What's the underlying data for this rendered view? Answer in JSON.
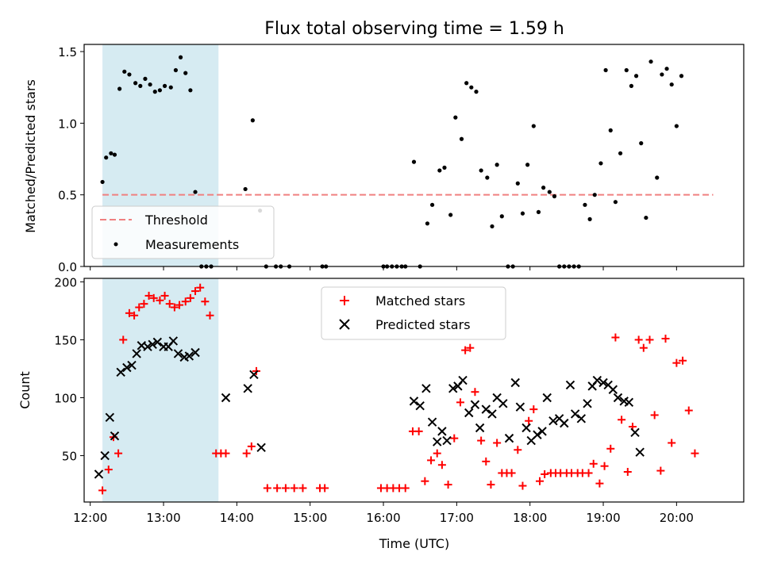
{
  "chart_data": [
    {
      "type": "scatter",
      "title": "Flux total observing time = 1.59 h",
      "ylabel": "Matched/Predicted stars",
      "xlabel": "",
      "xlim": [
        "11:55",
        "20:55"
      ],
      "ylim": [
        0,
        1.55
      ],
      "x_ticks": [
        "12:00",
        "13:00",
        "14:00",
        "15:00",
        "16:00",
        "17:00",
        "18:00",
        "19:00",
        "20:00"
      ],
      "y_ticks": [
        "0.0",
        "0.5",
        "1.0",
        "1.5"
      ],
      "x_tick_labels_shown": false,
      "shaded_span": {
        "start": "12:10",
        "end": "13:45",
        "color": "#add8e6"
      },
      "legend": {
        "placement": "lower-left",
        "entries": [
          "Threshold",
          "Measurements"
        ]
      },
      "threshold": {
        "name": "Threshold",
        "value": 0.5,
        "x_range": [
          "12:10",
          "20:30"
        ],
        "color": "#f08080",
        "style": "dashed"
      },
      "series": [
        {
          "name": "Measurements",
          "color": "#000000",
          "marker": "dot",
          "points": [
            [
              "12:10",
              0.59
            ],
            [
              "12:13",
              0.76
            ],
            [
              "12:17",
              0.79
            ],
            [
              "12:20",
              0.78
            ],
            [
              "12:24",
              1.24
            ],
            [
              "12:28",
              1.36
            ],
            [
              "12:32",
              1.34
            ],
            [
              "12:37",
              1.28
            ],
            [
              "12:41",
              1.26
            ],
            [
              "12:45",
              1.31
            ],
            [
              "12:49",
              1.27
            ],
            [
              "12:53",
              1.22
            ],
            [
              "12:57",
              1.23
            ],
            [
              "13:01",
              1.26
            ],
            [
              "13:06",
              1.25
            ],
            [
              "13:10",
              1.37
            ],
            [
              "13:14",
              1.46
            ],
            [
              "13:18",
              1.35
            ],
            [
              "13:22",
              1.23
            ],
            [
              "13:26",
              0.52
            ],
            [
              "13:31",
              0.0
            ],
            [
              "13:35",
              0.0
            ],
            [
              "13:39",
              0.0
            ],
            [
              "14:07",
              0.54
            ],
            [
              "14:13",
              1.02
            ],
            [
              "14:19",
              0.39
            ],
            [
              "14:24",
              0.0
            ],
            [
              "14:32",
              0.0
            ],
            [
              "14:36",
              0.0
            ],
            [
              "14:43",
              0.0
            ],
            [
              "15:10",
              0.0
            ],
            [
              "15:13",
              0.0
            ],
            [
              "16:00",
              0.0
            ],
            [
              "16:03",
              0.0
            ],
            [
              "16:07",
              0.0
            ],
            [
              "16:11",
              0.0
            ],
            [
              "16:15",
              0.0
            ],
            [
              "16:18",
              0.0
            ],
            [
              "16:25",
              0.73
            ],
            [
              "16:30",
              0.0
            ],
            [
              "16:36",
              0.3
            ],
            [
              "16:40",
              0.43
            ],
            [
              "16:46",
              0.67
            ],
            [
              "16:50",
              0.69
            ],
            [
              "16:55",
              0.36
            ],
            [
              "16:59",
              1.04
            ],
            [
              "17:04",
              0.89
            ],
            [
              "17:08",
              1.28
            ],
            [
              "17:12",
              1.25
            ],
            [
              "17:16",
              1.22
            ],
            [
              "17:20",
              0.67
            ],
            [
              "17:25",
              0.62
            ],
            [
              "17:29",
              0.28
            ],
            [
              "17:33",
              0.71
            ],
            [
              "17:37",
              0.35
            ],
            [
              "17:42",
              0.0
            ],
            [
              "17:46",
              0.0
            ],
            [
              "17:50",
              0.58
            ],
            [
              "17:54",
              0.37
            ],
            [
              "17:58",
              0.71
            ],
            [
              "18:03",
              0.98
            ],
            [
              "18:07",
              0.38
            ],
            [
              "18:11",
              0.55
            ],
            [
              "18:16",
              0.52
            ],
            [
              "18:20",
              0.49
            ],
            [
              "18:24",
              0.0
            ],
            [
              "18:28",
              0.0
            ],
            [
              "18:32",
              0.0
            ],
            [
              "18:36",
              0.0
            ],
            [
              "18:40",
              0.0
            ],
            [
              "18:45",
              0.43
            ],
            [
              "18:49",
              0.33
            ],
            [
              "18:53",
              0.5
            ],
            [
              "18:58",
              0.72
            ],
            [
              "19:02",
              1.37
            ],
            [
              "19:06",
              0.95
            ],
            [
              "19:10",
              0.45
            ],
            [
              "19:14",
              0.79
            ],
            [
              "19:19",
              1.37
            ],
            [
              "19:23",
              1.26
            ],
            [
              "19:27",
              1.33
            ],
            [
              "19:31",
              0.86
            ],
            [
              "19:35",
              0.34
            ],
            [
              "19:39",
              1.43
            ],
            [
              "19:44",
              0.62
            ],
            [
              "19:48",
              1.34
            ],
            [
              "19:52",
              1.38
            ],
            [
              "19:56",
              1.27
            ],
            [
              "20:00",
              0.98
            ],
            [
              "20:04",
              1.33
            ]
          ]
        }
      ]
    },
    {
      "type": "scatter",
      "title": "",
      "xlabel": "Time (UTC)",
      "ylabel": "Count",
      "xlim": [
        "11:55",
        "20:55"
      ],
      "ylim": [
        10,
        203
      ],
      "x_ticks": [
        "12:00",
        "13:00",
        "14:00",
        "15:00",
        "16:00",
        "17:00",
        "18:00",
        "19:00",
        "20:00"
      ],
      "y_ticks": [
        "50",
        "100",
        "150",
        "200"
      ],
      "shaded_span": {
        "start": "12:10",
        "end": "13:45",
        "color": "#add8e6"
      },
      "legend": {
        "placement": "top-center",
        "entries": [
          "Matched stars",
          "Predicted stars"
        ]
      },
      "series": [
        {
          "name": "Matched stars",
          "color": "#ff0000",
          "marker": "plus",
          "points": [
            [
              "12:10",
              20
            ],
            [
              "12:15",
              38
            ],
            [
              "12:19",
              66
            ],
            [
              "12:23",
              52
            ],
            [
              "12:27",
              150
            ],
            [
              "12:32",
              173
            ],
            [
              "12:36",
              171
            ],
            [
              "12:40",
              178
            ],
            [
              "12:44",
              181
            ],
            [
              "12:48",
              188
            ],
            [
              "12:52",
              186
            ],
            [
              "12:57",
              184
            ],
            [
              "13:01",
              188
            ],
            [
              "13:05",
              181
            ],
            [
              "13:09",
              178
            ],
            [
              "13:13",
              180
            ],
            [
              "13:18",
              183
            ],
            [
              "13:22",
              186
            ],
            [
              "13:26",
              192
            ],
            [
              "13:30",
              195
            ],
            [
              "13:34",
              183
            ],
            [
              "13:38",
              171
            ],
            [
              "13:43",
              52
            ],
            [
              "13:47",
              52
            ],
            [
              "13:51",
              52
            ],
            [
              "14:08",
              52
            ],
            [
              "14:12",
              58
            ],
            [
              "14:16",
              123
            ],
            [
              "14:25",
              22
            ],
            [
              "14:33",
              22
            ],
            [
              "14:40",
              22
            ],
            [
              "14:47",
              22
            ],
            [
              "14:54",
              22
            ],
            [
              "15:08",
              22
            ],
            [
              "15:12",
              22
            ],
            [
              "15:58",
              22
            ],
            [
              "16:03",
              22
            ],
            [
              "16:08",
              22
            ],
            [
              "16:13",
              22
            ],
            [
              "16:18",
              22
            ],
            [
              "16:24",
              71
            ],
            [
              "16:29",
              71
            ],
            [
              "16:34",
              28
            ],
            [
              "16:39",
              46
            ],
            [
              "16:44",
              52
            ],
            [
              "16:48",
              42
            ],
            [
              "16:53",
              25
            ],
            [
              "16:58",
              65
            ],
            [
              "17:03",
              96
            ],
            [
              "17:07",
              141
            ],
            [
              "17:11",
              143
            ],
            [
              "17:15",
              105
            ],
            [
              "17:20",
              63
            ],
            [
              "17:24",
              45
            ],
            [
              "17:28",
              25
            ],
            [
              "17:33",
              61
            ],
            [
              "17:37",
              35
            ],
            [
              "17:41",
              35
            ],
            [
              "17:45",
              35
            ],
            [
              "17:50",
              55
            ],
            [
              "17:54",
              24
            ],
            [
              "17:59",
              80
            ],
            [
              "18:03",
              90
            ],
            [
              "18:08",
              28
            ],
            [
              "18:12",
              34
            ],
            [
              "18:17",
              35
            ],
            [
              "18:21",
              35
            ],
            [
              "18:25",
              35
            ],
            [
              "18:30",
              35
            ],
            [
              "18:34",
              35
            ],
            [
              "18:39",
              35
            ],
            [
              "18:43",
              35
            ],
            [
              "18:48",
              35
            ],
            [
              "18:52",
              43
            ],
            [
              "18:57",
              26
            ],
            [
              "19:01",
              41
            ],
            [
              "19:06",
              56
            ],
            [
              "19:10",
              152
            ],
            [
              "19:15",
              81
            ],
            [
              "19:20",
              36
            ],
            [
              "19:24",
              75
            ],
            [
              "19:29",
              150
            ],
            [
              "19:33",
              143
            ],
            [
              "19:38",
              150
            ],
            [
              "19:42",
              85
            ],
            [
              "19:47",
              37
            ],
            [
              "19:51",
              151
            ],
            [
              "19:56",
              61
            ],
            [
              "20:00",
              130
            ],
            [
              "20:05",
              132
            ],
            [
              "20:10",
              89
            ],
            [
              "20:15",
              52
            ]
          ]
        },
        {
          "name": "Predicted stars",
          "color": "#000000",
          "marker": "x",
          "points": [
            [
              "12:07",
              34
            ],
            [
              "12:12",
              50
            ],
            [
              "12:16",
              83
            ],
            [
              "12:20",
              67
            ],
            [
              "12:25",
              122
            ],
            [
              "12:30",
              126
            ],
            [
              "12:34",
              128
            ],
            [
              "12:38",
              138
            ],
            [
              "12:42",
              145
            ],
            [
              "12:47",
              144
            ],
            [
              "12:51",
              146
            ],
            [
              "12:55",
              148
            ],
            [
              "13:00",
              144
            ],
            [
              "13:04",
              144
            ],
            [
              "13:08",
              149
            ],
            [
              "13:12",
              138
            ],
            [
              "13:17",
              135
            ],
            [
              "13:21",
              136
            ],
            [
              "13:26",
              139
            ],
            [
              "13:51",
              100
            ],
            [
              "14:09",
              108
            ],
            [
              "14:14",
              120
            ],
            [
              "14:20",
              57
            ],
            [
              "16:25",
              97
            ],
            [
              "16:30",
              93
            ],
            [
              "16:35",
              108
            ],
            [
              "16:40",
              79
            ],
            [
              "16:44",
              62
            ],
            [
              "16:48",
              71
            ],
            [
              "16:52",
              63
            ],
            [
              "16:57",
              108
            ],
            [
              "17:01",
              110
            ],
            [
              "17:05",
              115
            ],
            [
              "17:10",
              87
            ],
            [
              "17:15",
              94
            ],
            [
              "17:19",
              74
            ],
            [
              "17:24",
              90
            ],
            [
              "17:29",
              86
            ],
            [
              "17:33",
              100
            ],
            [
              "17:38",
              95
            ],
            [
              "17:43",
              65
            ],
            [
              "17:48",
              113
            ],
            [
              "17:52",
              92
            ],
            [
              "17:57",
              74
            ],
            [
              "18:01",
              63
            ],
            [
              "18:06",
              68
            ],
            [
              "18:10",
              71
            ],
            [
              "18:14",
              100
            ],
            [
              "18:19",
              80
            ],
            [
              "18:24",
              82
            ],
            [
              "18:28",
              78
            ],
            [
              "18:33",
              111
            ],
            [
              "18:37",
              86
            ],
            [
              "18:42",
              82
            ],
            [
              "18:47",
              95
            ],
            [
              "18:51",
              110
            ],
            [
              "18:55",
              115
            ],
            [
              "19:00",
              113
            ],
            [
              "19:04",
              111
            ],
            [
              "19:08",
              107
            ],
            [
              "19:12",
              100
            ],
            [
              "19:17",
              97
            ],
            [
              "19:21",
              96
            ],
            [
              "19:26",
              70
            ],
            [
              "19:30",
              53
            ]
          ]
        }
      ]
    }
  ]
}
